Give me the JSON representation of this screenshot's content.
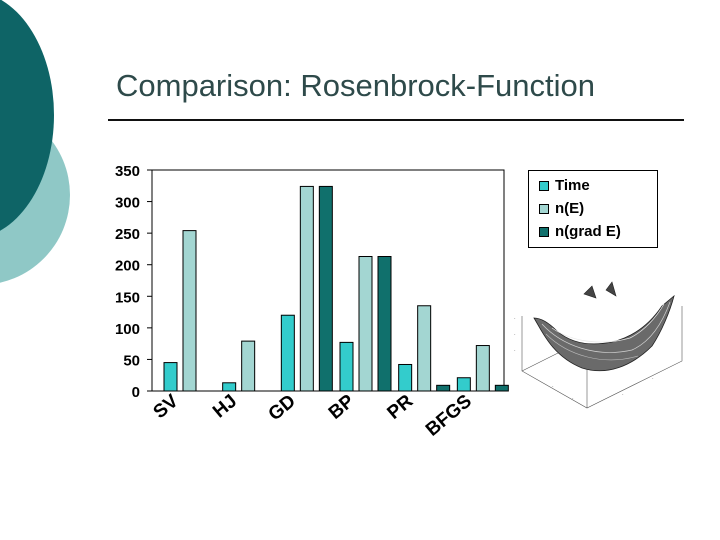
{
  "slide": {
    "title": "Comparison: Rosenbrock-Function",
    "colors": {
      "dark_teal": "#0e6466",
      "light_teal": "#8fc8c6"
    }
  },
  "chart_data": {
    "type": "bar",
    "categories": [
      "SV",
      "HJ",
      "GD",
      "BP",
      "PR",
      "BFGS"
    ],
    "series": [
      {
        "name": "Time",
        "values": [
          45,
          13,
          120,
          77,
          42,
          21
        ],
        "color": "#33cccc"
      },
      {
        "name": "n(E)",
        "values": [
          254,
          79,
          324,
          213,
          135,
          72
        ],
        "color": "#a3d6d2"
      },
      {
        "name": "n(grad E)",
        "values": [
          null,
          null,
          324,
          213,
          9,
          9
        ],
        "color": "#10706c"
      }
    ],
    "yticks": [
      0,
      50,
      100,
      150,
      200,
      250,
      300,
      350
    ],
    "ylim": [
      0,
      350
    ],
    "grid": false,
    "legend": "top-right",
    "title": "",
    "xlabel": "",
    "ylabel": ""
  },
  "thumbnail": {
    "icon": "rosenbrock-surface-plot-icon"
  }
}
